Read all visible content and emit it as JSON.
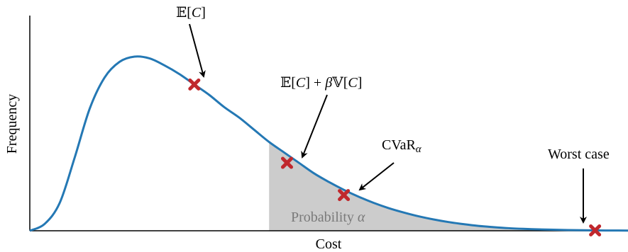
{
  "chart_data": {
    "type": "area",
    "xlabel": "Cost",
    "ylabel": "Frequency",
    "grid": false,
    "xlim": [
      0,
      10
    ],
    "ylim": [
      0,
      1.05
    ],
    "curve": {
      "color": "#2478b4",
      "x": [
        0.0,
        0.25,
        0.5,
        0.75,
        1.0,
        1.25,
        1.5,
        1.75,
        2.0,
        2.25,
        2.5,
        2.75,
        3.0,
        3.25,
        3.5,
        3.75,
        4.0,
        4.25,
        4.5,
        4.75,
        5.0,
        5.25,
        5.5,
        5.75,
        6.0,
        6.25,
        6.5,
        6.75,
        7.0,
        7.25,
        7.5,
        7.75,
        8.0,
        8.25,
        8.5,
        8.75,
        9.0,
        9.25,
        9.5,
        9.75,
        10.0
      ],
      "y": [
        0.0,
        0.04,
        0.16,
        0.42,
        0.7,
        0.88,
        0.97,
        1.0,
        0.99,
        0.95,
        0.9,
        0.84,
        0.78,
        0.71,
        0.65,
        0.58,
        0.51,
        0.45,
        0.39,
        0.33,
        0.28,
        0.235,
        0.195,
        0.16,
        0.13,
        0.105,
        0.083,
        0.065,
        0.05,
        0.038,
        0.028,
        0.021,
        0.015,
        0.011,
        0.008,
        0.006,
        0.004,
        0.003,
        0.002,
        0.0015,
        0.001
      ]
    },
    "shaded_region": {
      "x_start": 4.0,
      "label": "Probability α",
      "color": "#cccccc"
    },
    "markers": [
      {
        "name": "expectation",
        "label": "𝔼[C]",
        "x": 2.75,
        "y": 0.84,
        "color": "#c0282d"
      },
      {
        "name": "mean-variance",
        "label": "𝔼[C] + β𝕍[C]",
        "x": 4.3,
        "y": 0.39,
        "color": "#c0282d"
      },
      {
        "name": "cvar",
        "label": "CVaRα",
        "x": 5.25,
        "y": 0.205,
        "color": "#c0282d"
      },
      {
        "name": "worst-case",
        "label": "Worst case",
        "x": 9.45,
        "y": 0.002,
        "color": "#c0282d"
      }
    ]
  }
}
